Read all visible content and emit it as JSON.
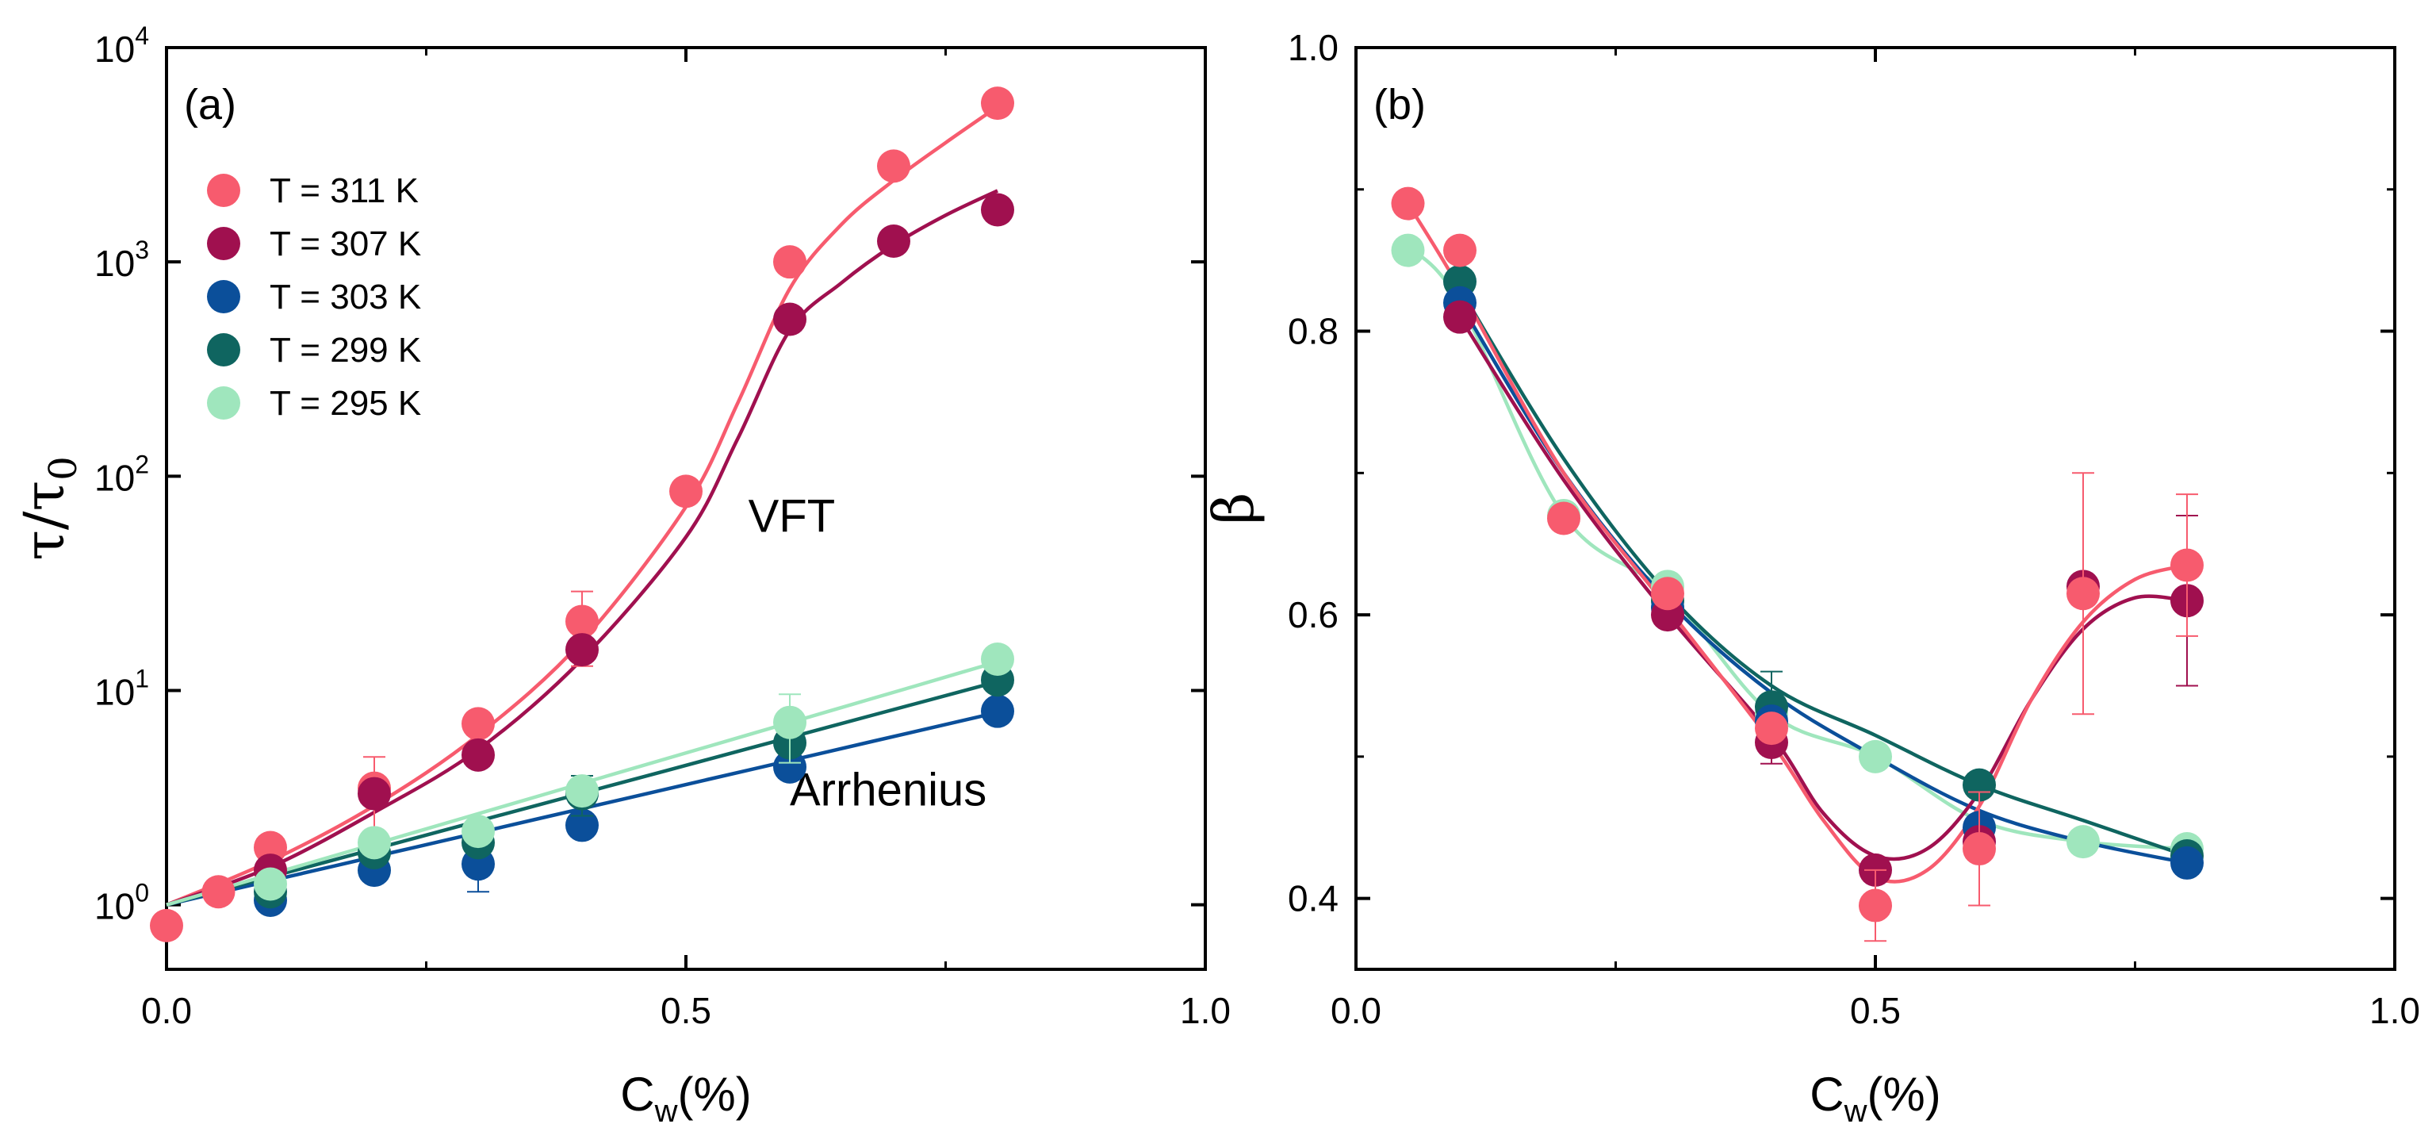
{
  "colors": {
    "T311": "#f75b6e",
    "T307": "#a0104f",
    "T303": "#0b4f9a",
    "T299": "#0f6560",
    "T295": "#9fe6bd",
    "axis": "#000000"
  },
  "chart_data": [
    {
      "type": "scatter",
      "panel_label": "(a)",
      "yscale": "log",
      "xlabel_main": "C",
      "xlabel_sub": "w",
      "xlabel_unit": "(%)",
      "ylabel_sym": "τ/τ",
      "ylabel_sub": "0",
      "xlim": [
        0.0,
        1.0
      ],
      "ylim": [
        0.5,
        10000
      ],
      "xticks": [
        {
          "v": 0.0,
          "label": "0.0"
        },
        {
          "v": 0.5,
          "label": "0.5"
        },
        {
          "v": 1.0,
          "label": "1.0"
        }
      ],
      "yticks": [
        {
          "v": 1,
          "base": "10",
          "exp": "0"
        },
        {
          "v": 10,
          "base": "10",
          "exp": "1"
        },
        {
          "v": 100,
          "base": "10",
          "exp": "2"
        },
        {
          "v": 1000,
          "base": "10",
          "exp": "3"
        },
        {
          "v": 10000,
          "base": "10",
          "exp": "4"
        }
      ],
      "legend_position": "top-left",
      "annotations": [
        {
          "text": "VFT",
          "x": 0.56,
          "y": 55
        },
        {
          "text": "Arrhenius",
          "x": 0.6,
          "y": 2.9
        }
      ],
      "series": [
        {
          "name": "T = 311 K",
          "color_key": "T311",
          "points": [
            {
              "x": 0.0,
              "y": 0.8
            },
            {
              "x": 0.05,
              "y": 1.15
            },
            {
              "x": 0.1,
              "y": 1.85
            },
            {
              "x": 0.2,
              "y": 3.5,
              "err": 1.4
            },
            {
              "x": 0.3,
              "y": 7.0
            },
            {
              "x": 0.4,
              "y": 21,
              "err": 8
            },
            {
              "x": 0.5,
              "y": 85
            },
            {
              "x": 0.6,
              "y": 1000
            },
            {
              "x": 0.7,
              "y": 2800
            },
            {
              "x": 0.8,
              "y": 5500
            }
          ],
          "fit": {
            "label": "VFT",
            "points": [
              [
                0,
                1.0
              ],
              [
                0.1,
                1.6
              ],
              [
                0.2,
                2.9
              ],
              [
                0.3,
                6.2
              ],
              [
                0.4,
                17
              ],
              [
                0.5,
                72
              ],
              [
                0.55,
                220
              ],
              [
                0.6,
                750
              ],
              [
                0.65,
                1500
              ],
              [
                0.7,
                2400
              ],
              [
                0.75,
                3600
              ],
              [
                0.8,
                5300
              ]
            ]
          }
        },
        {
          "name": "T = 307 K",
          "color_key": "T307",
          "points": [
            {
              "x": 0.1,
              "y": 1.45
            },
            {
              "x": 0.2,
              "y": 3.3
            },
            {
              "x": 0.3,
              "y": 5.0
            },
            {
              "x": 0.4,
              "y": 15.5
            },
            {
              "x": 0.6,
              "y": 540
            },
            {
              "x": 0.7,
              "y": 1250
            },
            {
              "x": 0.8,
              "y": 1750
            }
          ],
          "fit": {
            "label": "VFT",
            "points": [
              [
                0,
                1.0
              ],
              [
                0.1,
                1.5
              ],
              [
                0.2,
                2.7
              ],
              [
                0.3,
                5.3
              ],
              [
                0.4,
                14
              ],
              [
                0.5,
                52
              ],
              [
                0.55,
                150
              ],
              [
                0.6,
                480
              ],
              [
                0.65,
                800
              ],
              [
                0.7,
                1200
              ],
              [
                0.75,
                1650
              ],
              [
                0.8,
                2150
              ]
            ]
          }
        },
        {
          "name": "T = 303 K",
          "color_key": "T303",
          "points": [
            {
              "x": 0.1,
              "y": 1.05
            },
            {
              "x": 0.2,
              "y": 1.45
            },
            {
              "x": 0.3,
              "y": 1.55,
              "err": 0.4
            },
            {
              "x": 0.4,
              "y": 2.35
            },
            {
              "x": 0.6,
              "y": 4.4
            },
            {
              "x": 0.8,
              "y": 8.0
            }
          ],
          "fit": {
            "label": "Arrhenius",
            "points": [
              [
                0,
                1.0
              ],
              [
                0.8,
                7.9
              ]
            ]
          }
        },
        {
          "name": "T = 299 K",
          "color_key": "T299",
          "points": [
            {
              "x": 0.1,
              "y": 1.15
            },
            {
              "x": 0.2,
              "y": 1.75
            },
            {
              "x": 0.3,
              "y": 1.95
            },
            {
              "x": 0.4,
              "y": 3.3,
              "err": 0.7
            },
            {
              "x": 0.6,
              "y": 5.7
            },
            {
              "x": 0.8,
              "y": 11.2
            }
          ],
          "fit": {
            "label": "Arrhenius",
            "points": [
              [
                0,
                1.0
              ],
              [
                0.8,
                11.0
              ]
            ]
          }
        },
        {
          "name": "T = 295 K",
          "color_key": "T295",
          "points": [
            {
              "x": 0.1,
              "y": 1.25
            },
            {
              "x": 0.2,
              "y": 1.95
            },
            {
              "x": 0.3,
              "y": 2.2
            },
            {
              "x": 0.4,
              "y": 3.4
            },
            {
              "x": 0.6,
              "y": 7.1,
              "err": 2.5
            },
            {
              "x": 0.8,
              "y": 14.0
            }
          ],
          "fit": {
            "label": "Arrhenius",
            "points": [
              [
                0,
                1.0
              ],
              [
                0.8,
                13.6
              ]
            ]
          }
        }
      ]
    },
    {
      "type": "scatter",
      "panel_label": "(b)",
      "yscale": "linear",
      "xlabel_main": "C",
      "xlabel_sub": "w",
      "xlabel_unit": "(%)",
      "ylabel_sym": "β",
      "ylabel_sub": "",
      "xlim": [
        0.0,
        1.0
      ],
      "ylim": [
        0.35,
        1.0
      ],
      "xticks": [
        {
          "v": 0.0,
          "label": "0.0"
        },
        {
          "v": 0.5,
          "label": "0.5"
        },
        {
          "v": 1.0,
          "label": "1.0"
        }
      ],
      "yticks": [
        {
          "v": 0.4,
          "label": "0.4"
        },
        {
          "v": 0.6,
          "label": "0.6"
        },
        {
          "v": 0.8,
          "label": "0.8"
        },
        {
          "v": 1.0,
          "label": "1.0"
        }
      ],
      "series": [
        {
          "name": "T = 295 K",
          "color_key": "T295",
          "points": [
            {
              "x": 0.05,
              "y": 0.857
            },
            {
              "x": 0.2,
              "y": 0.67
            },
            {
              "x": 0.3,
              "y": 0.62
            },
            {
              "x": 0.4,
              "y": 0.53
            },
            {
              "x": 0.5,
              "y": 0.5
            },
            {
              "x": 0.7,
              "y": 0.44
            },
            {
              "x": 0.8,
              "y": 0.435
            }
          ],
          "fit": {
            "points": [
              [
                0.05,
                0.86
              ],
              [
                0.1,
                0.82
              ],
              [
                0.2,
                0.67
              ],
              [
                0.3,
                0.615
              ],
              [
                0.4,
                0.53
              ],
              [
                0.5,
                0.5
              ],
              [
                0.6,
                0.455
              ],
              [
                0.7,
                0.44
              ],
              [
                0.8,
                0.435
              ]
            ]
          }
        },
        {
          "name": "T = 299 K",
          "color_key": "T299",
          "points": [
            {
              "x": 0.1,
              "y": 0.835
            },
            {
              "x": 0.3,
              "y": 0.61
            },
            {
              "x": 0.4,
              "y": 0.535,
              "err": 0.025
            },
            {
              "x": 0.6,
              "y": 0.48
            },
            {
              "x": 0.8,
              "y": 0.43
            }
          ],
          "fit": {
            "points": [
              [
                0.1,
                0.83
              ],
              [
                0.2,
                0.71
              ],
              [
                0.3,
                0.615
              ],
              [
                0.4,
                0.55
              ],
              [
                0.5,
                0.515
              ],
              [
                0.6,
                0.48
              ],
              [
                0.7,
                0.455
              ],
              [
                0.8,
                0.43
              ]
            ]
          }
        },
        {
          "name": "T = 303 K",
          "color_key": "T303",
          "points": [
            {
              "x": 0.1,
              "y": 0.82
            },
            {
              "x": 0.3,
              "y": 0.605
            },
            {
              "x": 0.4,
              "y": 0.525
            },
            {
              "x": 0.6,
              "y": 0.45
            },
            {
              "x": 0.8,
              "y": 0.425
            }
          ],
          "fit": {
            "points": [
              [
                0.1,
                0.82
              ],
              [
                0.2,
                0.7
              ],
              [
                0.3,
                0.61
              ],
              [
                0.4,
                0.545
              ],
              [
                0.5,
                0.5
              ],
              [
                0.6,
                0.462
              ],
              [
                0.7,
                0.44
              ],
              [
                0.8,
                0.425
              ]
            ]
          }
        },
        {
          "name": "T = 307 K",
          "color_key": "T307",
          "points": [
            {
              "x": 0.1,
              "y": 0.81
            },
            {
              "x": 0.3,
              "y": 0.6
            },
            {
              "x": 0.4,
              "y": 0.51,
              "err": 0.015
            },
            {
              "x": 0.5,
              "y": 0.42
            },
            {
              "x": 0.6,
              "y": 0.44
            },
            {
              "x": 0.7,
              "y": 0.62
            },
            {
              "x": 0.8,
              "y": 0.61,
              "err": 0.06
            }
          ],
          "fit": {
            "points": [
              [
                0.1,
                0.81
              ],
              [
                0.2,
                0.695
              ],
              [
                0.3,
                0.6
              ],
              [
                0.4,
                0.515
              ],
              [
                0.45,
                0.46
              ],
              [
                0.5,
                0.43
              ],
              [
                0.55,
                0.435
              ],
              [
                0.6,
                0.475
              ],
              [
                0.65,
                0.54
              ],
              [
                0.7,
                0.59
              ],
              [
                0.75,
                0.612
              ],
              [
                0.8,
                0.61
              ]
            ]
          }
        },
        {
          "name": "T = 311 K",
          "color_key": "T311",
          "points": [
            {
              "x": 0.05,
              "y": 0.89
            },
            {
              "x": 0.1,
              "y": 0.857
            },
            {
              "x": 0.2,
              "y": 0.668
            },
            {
              "x": 0.3,
              "y": 0.615
            },
            {
              "x": 0.4,
              "y": 0.52
            },
            {
              "x": 0.5,
              "y": 0.395,
              "err": 0.025
            },
            {
              "x": 0.6,
              "y": 0.435,
              "err": 0.04
            },
            {
              "x": 0.7,
              "y": 0.615,
              "err": 0.085
            },
            {
              "x": 0.8,
              "y": 0.635,
              "err": 0.05
            }
          ],
          "fit": {
            "points": [
              [
                0.05,
                0.89
              ],
              [
                0.1,
                0.83
              ],
              [
                0.2,
                0.7
              ],
              [
                0.3,
                0.605
              ],
              [
                0.4,
                0.51
              ],
              [
                0.45,
                0.455
              ],
              [
                0.5,
                0.415
              ],
              [
                0.55,
                0.42
              ],
              [
                0.6,
                0.465
              ],
              [
                0.65,
                0.54
              ],
              [
                0.7,
                0.595
              ],
              [
                0.75,
                0.625
              ],
              [
                0.8,
                0.635
              ]
            ]
          }
        }
      ]
    }
  ]
}
